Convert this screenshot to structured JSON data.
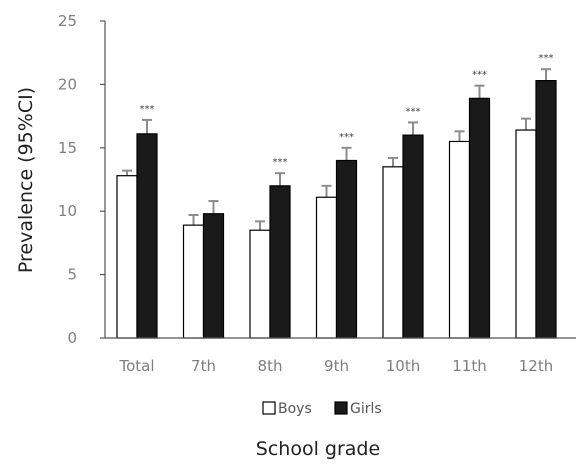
{
  "chart_data": {
    "type": "bar",
    "title": "",
    "xlabel": "School grade",
    "ylabel": "Prevalence (95%CI)",
    "ylim": [
      0,
      25
    ],
    "yticks": [
      0,
      5,
      10,
      15,
      20,
      25
    ],
    "grid": false,
    "legend_position": "bottom",
    "categories": [
      "Total",
      "7th",
      "8th",
      "9th",
      "10th",
      "11th",
      "12th"
    ],
    "series": [
      {
        "name": "Boys",
        "color": "#ffffff",
        "stroke": "#000000",
        "values": [
          12.8,
          8.9,
          8.5,
          11.1,
          13.5,
          15.5,
          16.4
        ],
        "ci_upper": [
          13.2,
          9.7,
          9.2,
          12.0,
          14.2,
          16.3,
          17.3
        ]
      },
      {
        "name": "Girls",
        "color": "#1a1a1a",
        "stroke": "#000000",
        "values": [
          16.1,
          9.8,
          12.0,
          14.0,
          16.0,
          18.9,
          20.3
        ],
        "ci_upper": [
          17.2,
          10.8,
          13.0,
          15.0,
          17.0,
          19.9,
          21.2
        ]
      }
    ],
    "significance": [
      "***",
      "",
      "***",
      "***",
      "***",
      "***",
      "***"
    ],
    "error_bar_color": "#8c8c8c"
  }
}
